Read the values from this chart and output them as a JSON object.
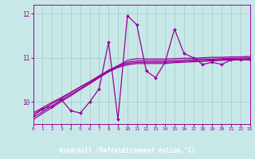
{
  "x": [
    0,
    1,
    2,
    3,
    4,
    5,
    6,
    7,
    8,
    9,
    10,
    11,
    12,
    13,
    14,
    15,
    16,
    17,
    18,
    19,
    20,
    21,
    22,
    23
  ],
  "y_main": [
    9.7,
    9.85,
    9.9,
    10.05,
    9.8,
    9.75,
    10.0,
    10.3,
    11.35,
    9.6,
    11.95,
    11.75,
    10.7,
    10.55,
    10.9,
    11.65,
    11.1,
    11.0,
    10.85,
    10.9,
    10.85,
    10.95,
    10.95,
    10.95
  ],
  "y_reg1": [
    9.75,
    9.87,
    9.99,
    10.1,
    10.22,
    10.34,
    10.46,
    10.58,
    10.7,
    10.82,
    10.94,
    10.98,
    10.97,
    10.97,
    10.97,
    10.98,
    10.99,
    10.99,
    11.0,
    11.01,
    11.01,
    11.02,
    11.02,
    11.03
  ],
  "y_reg2": [
    9.7,
    9.83,
    9.96,
    10.08,
    10.21,
    10.34,
    10.46,
    10.59,
    10.72,
    10.82,
    10.9,
    10.93,
    10.93,
    10.93,
    10.93,
    10.94,
    10.95,
    10.96,
    10.97,
    10.97,
    10.98,
    10.99,
    10.99,
    11.0
  ],
  "y_reg3": [
    9.65,
    9.78,
    9.91,
    10.04,
    10.17,
    10.3,
    10.43,
    10.56,
    10.69,
    10.8,
    10.87,
    10.9,
    10.9,
    10.9,
    10.9,
    10.91,
    10.92,
    10.93,
    10.94,
    10.95,
    10.96,
    10.97,
    10.97,
    10.98
  ],
  "y_reg4": [
    9.6,
    9.74,
    9.87,
    10.01,
    10.14,
    10.28,
    10.41,
    10.55,
    10.68,
    10.78,
    10.84,
    10.87,
    10.87,
    10.87,
    10.87,
    10.89,
    10.9,
    10.91,
    10.92,
    10.93,
    10.94,
    10.95,
    10.95,
    10.96
  ],
  "color": "#990099",
  "bg_color": "#c8e8e8",
  "grid_color": "#a0c8c8",
  "label_bg": "#800080",
  "label_fg": "#ffffff",
  "xlim": [
    0,
    23
  ],
  "ylim": [
    9.5,
    12.2
  ],
  "yticks": [
    10,
    11,
    12
  ],
  "xticks": [
    0,
    1,
    2,
    3,
    4,
    5,
    6,
    7,
    8,
    9,
    10,
    11,
    12,
    13,
    14,
    15,
    16,
    17,
    18,
    19,
    20,
    21,
    22,
    23
  ],
  "xlabel": "Windchill (Refroidissement éolien,°C)"
}
